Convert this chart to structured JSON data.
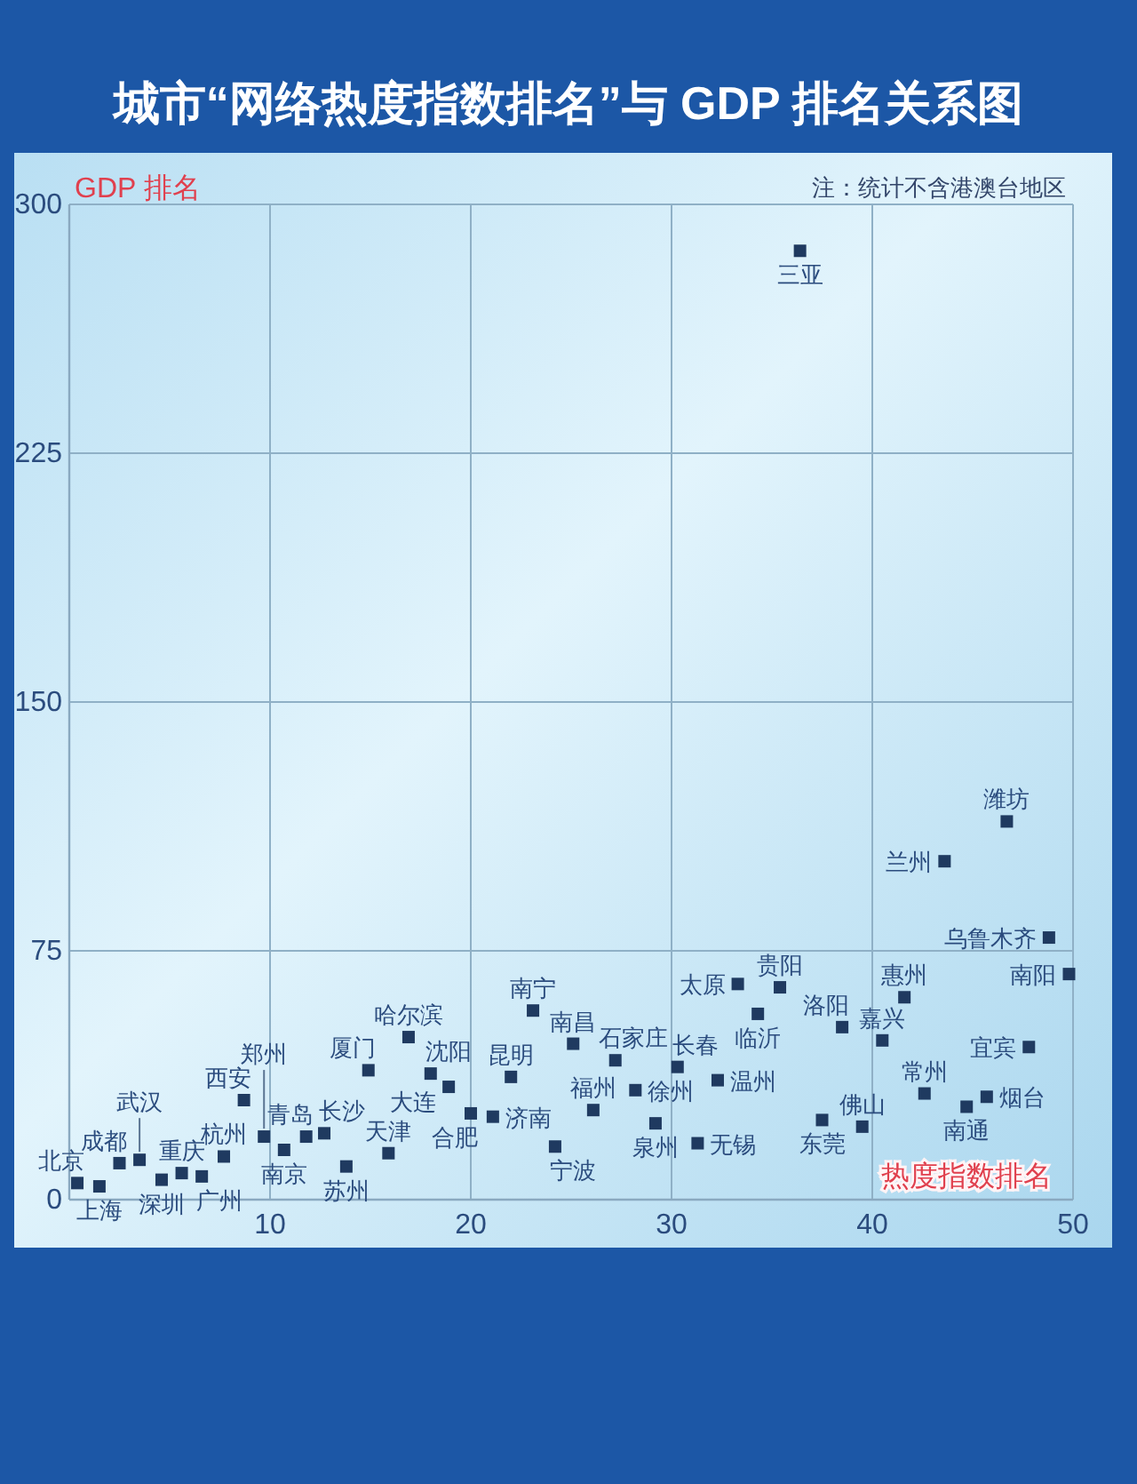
{
  "chart_data": {
    "type": "scatter",
    "title": "城市“网络热度指数排名”与 GDP 排名关系图",
    "xlabel": "热度指数排名",
    "ylabel": "GDP 排名",
    "annotations": [
      "注：统计不含港澳台地区"
    ],
    "x": [
      0.4,
      1.5,
      2.5,
      3.5,
      4.6,
      5.6,
      6.6,
      7.7,
      8.7,
      9.7,
      10.7,
      11.8,
      12.7,
      13.8,
      14.9,
      15.9,
      16.9,
      18.0,
      18.9,
      20.0,
      21.1,
      22.0,
      23.1,
      24.2,
      25.1,
      26.1,
      27.2,
      28.2,
      29.2,
      30.3,
      31.3,
      32.3,
      33.3,
      34.3,
      35.4,
      36.4,
      37.5,
      38.5,
      39.5,
      40.5,
      41.6,
      42.6,
      43.6,
      44.7,
      45.7,
      46.7,
      47.8,
      48.8,
      49.8
    ],
    "series": [
      {
        "color": "#1f3a60",
        "values": [
          5,
          4,
          11,
          12,
          6,
          8,
          7,
          13,
          30,
          19,
          15,
          19,
          20,
          10,
          39,
          14,
          49,
          38,
          34,
          26,
          25,
          37,
          57,
          16,
          47,
          27,
          42,
          33,
          23,
          40,
          17,
          36,
          65,
          56,
          64,
          286,
          24,
          52,
          22,
          48,
          61,
          32,
          102,
          28,
          31,
          114,
          46,
          79,
          68
        ],
        "value_labels": [
          "北京",
          "上海",
          "成都",
          "武汉",
          "深圳",
          "重庆",
          "广州",
          "杭州",
          "西安",
          "郑州",
          "南京",
          "青岛",
          "长沙",
          "苏州",
          "厦门",
          "天津",
          "哈尔滨",
          "沈阳",
          "大连",
          "合肥",
          "济南",
          "昆明",
          "南宁",
          "宁波",
          "南昌",
          "福州",
          "石家庄",
          "徐州",
          "泉州",
          "长春",
          "无锡",
          "温州",
          "太原",
          "临沂",
          "贵阳",
          "三亚",
          "东莞",
          "洛阳",
          "佛山",
          "嘉兴",
          "惠州",
          "常州",
          "兰州",
          "南通",
          "烟台",
          "潍坊",
          "宜宾",
          "乌鲁木齐",
          "南阳"
        ]
      }
    ],
    "marker": "square",
    "xlim": [
      0,
      50
    ],
    "xticks": [
      10,
      20,
      30,
      40,
      50
    ],
    "ylim": [
      0,
      300
    ],
    "yticks": [
      0,
      75,
      150,
      225,
      300
    ],
    "grid": true
  }
}
